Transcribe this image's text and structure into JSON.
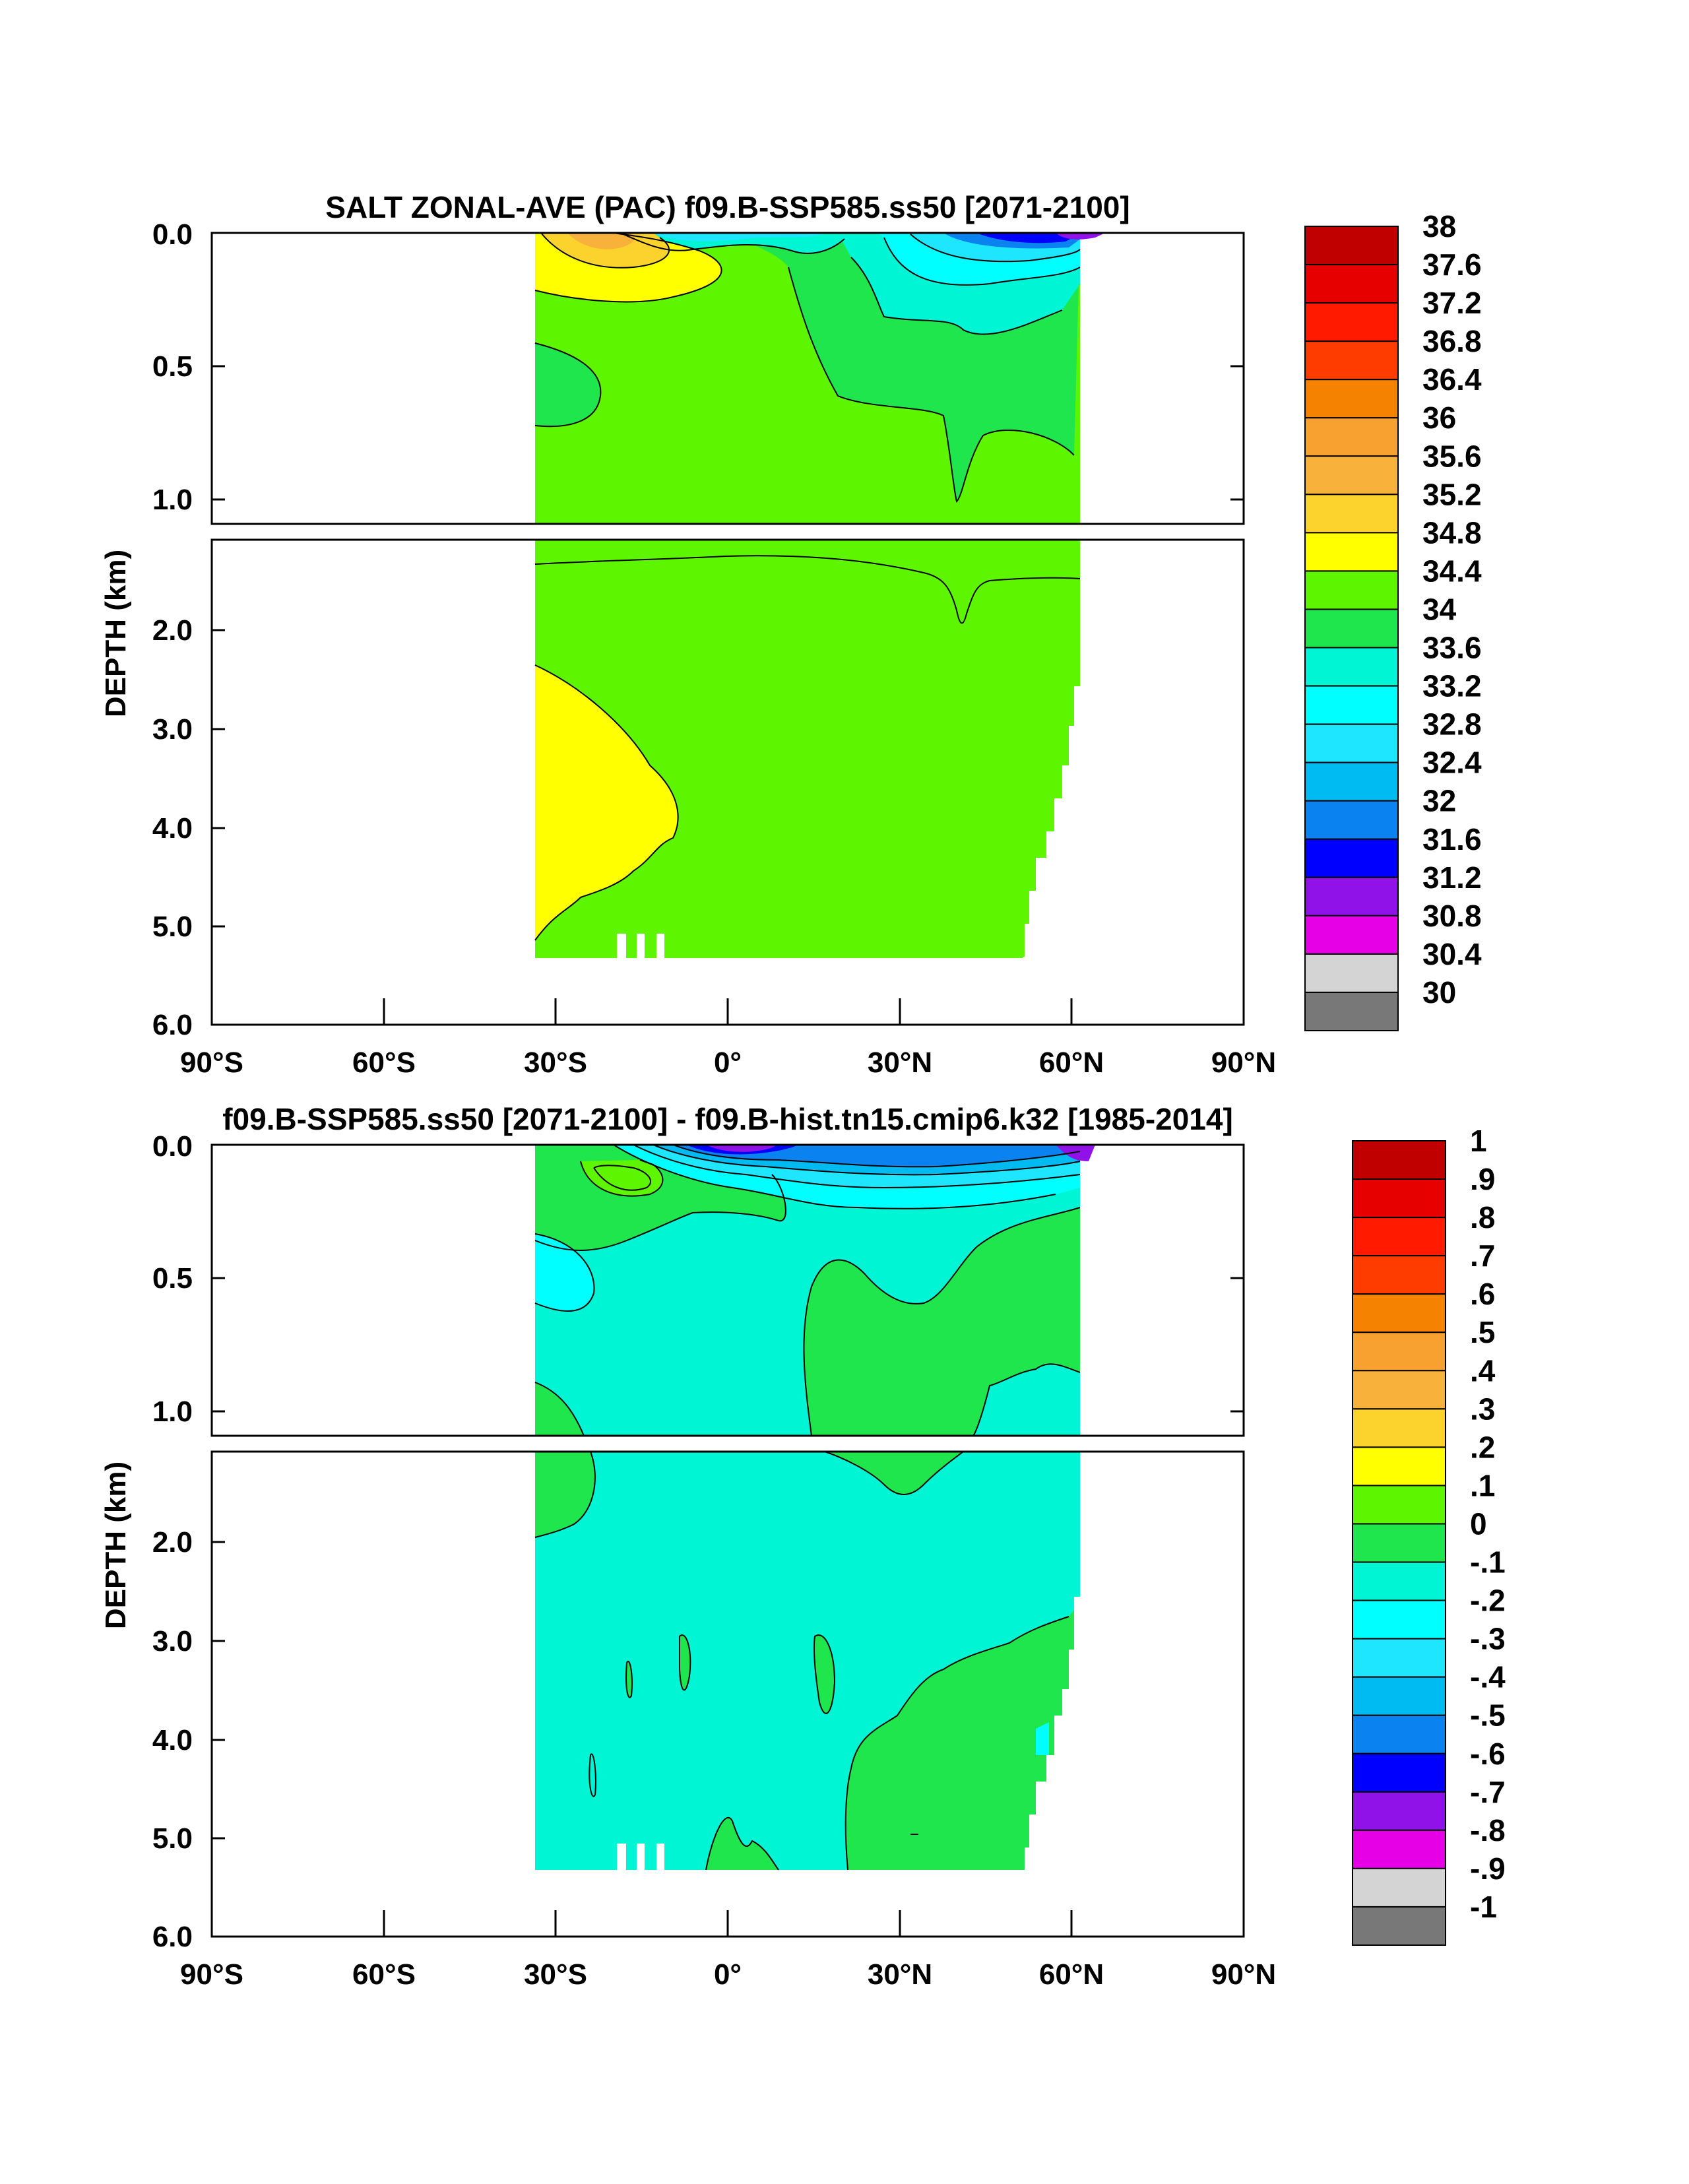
{
  "chart_data": [
    {
      "type": "heatmap",
      "title": "SALT ZONAL-AVE (PAC) f09.B-SSP585.ss50 [2071-2100]",
      "xlabel": "",
      "ylabel": "DEPTH (km)",
      "xlim": [
        -90,
        90
      ],
      "ylim": [
        6.0,
        0.0
      ],
      "y_split_at_km": 1.1,
      "x_ticks": [
        -90,
        -60,
        -30,
        0,
        30,
        60,
        90
      ],
      "x_tick_labels": [
        "90°S",
        "60°S",
        "30°S",
        "0°",
        "30°N",
        "60°N",
        "90°N"
      ],
      "y_ticks_upper": [
        0.0,
        0.5,
        1.0
      ],
      "y_tick_labels_upper": [
        "0.0",
        "0.5",
        "1.0"
      ],
      "y_ticks_lower": [
        2.0,
        3.0,
        4.0,
        5.0,
        6.0
      ],
      "y_tick_labels_lower": [
        "2.0",
        "3.0",
        "4.0",
        "5.0",
        "6.0"
      ],
      "colorbar": {
        "levels": [
          "38",
          "37.6",
          "37.2",
          "36.8",
          "36.4",
          "36",
          "35.6",
          "35.2",
          "34.8",
          "34.4",
          "34",
          "33.6",
          "33.2",
          "32.8",
          "32.4",
          "32",
          "31.6",
          "31.2",
          "30.8",
          "30.4",
          "30"
        ],
        "colors": [
          "#c00000",
          "#e60000",
          "#ff1a00",
          "#ff3c00",
          "#f58200",
          "#f8a030",
          "#f8b23c",
          "#fcd22c",
          "#ffff00",
          "#5ef500",
          "#1fe64c",
          "#00f5d4",
          "#00ffff",
          "#1ee6ff",
          "#00baf2",
          "#0a82f0",
          "#0000ff",
          "#9012e8",
          "#e600e6",
          "#d4d4d4",
          "#787878"
        ]
      },
      "data_extent": {
        "lat_min": -34,
        "lat_max": 61,
        "max_depth_km": 5.4
      },
      "regions": [
        {
          "name": "background",
          "value": 34.6
        },
        {
          "name": "south subtropical surface maximum",
          "value": 35.4
        },
        {
          "name": "north subpolar surface freshening",
          "value": 33.4
        },
        {
          "name": "northwest fresh core",
          "value": 31.8
        },
        {
          "name": "southern intermediate water",
          "value": 34.2
        },
        {
          "name": "south deep salty water",
          "value": 34.9
        }
      ]
    },
    {
      "type": "heatmap",
      "title": "f09.B-SSP585.ss50 [2071-2100] - f09.B-hist.tn15.cmip6.k32 [1985-2014]",
      "xlabel": "",
      "ylabel": "DEPTH (km)",
      "xlim": [
        -90,
        90
      ],
      "ylim": [
        6.0,
        0.0
      ],
      "y_split_at_km": 1.1,
      "x_ticks": [
        -90,
        -60,
        -30,
        0,
        30,
        60,
        90
      ],
      "x_tick_labels": [
        "90°S",
        "60°S",
        "30°S",
        "0°",
        "30°N",
        "60°N",
        "90°N"
      ],
      "y_ticks_upper": [
        0.0,
        0.5,
        1.0
      ],
      "y_tick_labels_upper": [
        "0.0",
        "0.5",
        "1.0"
      ],
      "y_ticks_lower": [
        2.0,
        3.0,
        4.0,
        5.0,
        6.0
      ],
      "y_tick_labels_lower": [
        "2.0",
        "3.0",
        "4.0",
        "5.0",
        "6.0"
      ],
      "colorbar": {
        "levels": [
          "1",
          ".9",
          ".8",
          ".7",
          ".6",
          ".5",
          ".4",
          ".3",
          ".2",
          ".1",
          "0",
          "-.1",
          "-.2",
          "-.3",
          "-.4",
          "-.5",
          "-.6",
          "-.7",
          "-.8",
          "-.9",
          "-1"
        ],
        "colors": [
          "#c00000",
          "#e60000",
          "#ff1a00",
          "#ff3c00",
          "#f58200",
          "#f8a030",
          "#f8b23c",
          "#fcd22c",
          "#ffff00",
          "#5ef500",
          "#1fe64c",
          "#00f5d4",
          "#00ffff",
          "#1ee6ff",
          "#00baf2",
          "#0a82f0",
          "#0000ff",
          "#9012e8",
          "#e600e6",
          "#d4d4d4",
          "#787878"
        ]
      },
      "data_extent": {
        "lat_min": -34,
        "lat_max": 61,
        "max_depth_km": 5.4
      },
      "regions": [
        {
          "name": "background",
          "value": -0.05
        },
        {
          "name": "south subtropical surface anomaly",
          "value": 0.25
        },
        {
          "name": "equatorial surface freshening",
          "value": -0.55
        },
        {
          "name": "north subtropical surface freshening",
          "value": -0.45
        },
        {
          "name": "southern intermediate freshening",
          "value": -0.15
        },
        {
          "name": "north intermediate positive anomaly",
          "value": 0.05
        },
        {
          "name": "north deep positive anomaly",
          "value": 0.05
        }
      ]
    }
  ]
}
